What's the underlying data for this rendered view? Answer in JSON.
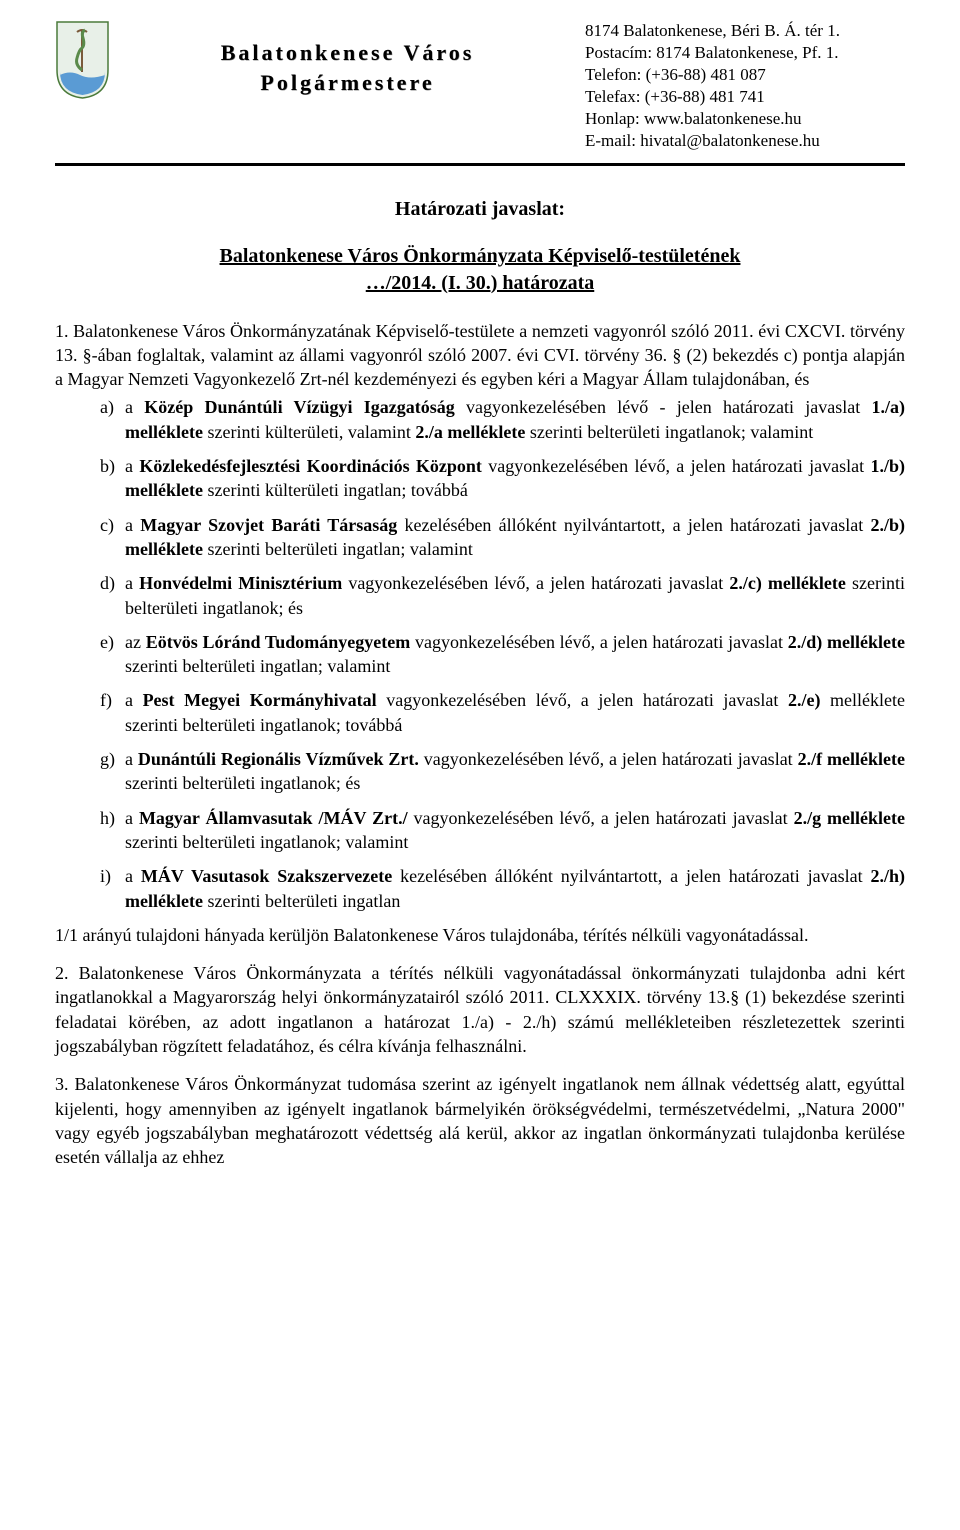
{
  "header": {
    "org_line1": "Balatonkenese Város",
    "org_line2": "Polgármestere",
    "contact": {
      "address": "8174 Balatonkenese, Béri B. Á. tér 1.",
      "postal": "Postacím: 8174 Balatonkenese, Pf. 1.",
      "phone": "Telefon: (+36-88) 481 087",
      "fax": "Telefax: (+36-88) 481 741",
      "web": "Honlap: www.balatonkenese.hu",
      "email": "E-mail: hivatal@balatonkenese.hu"
    }
  },
  "crest": {
    "shield_fill": "#c6e8d8",
    "shield_stroke": "#4a7a3a",
    "snake_color": "#5a8a4a",
    "wave_color": "#5a9bd4"
  },
  "doc": {
    "heading": "Határozati javaslat:",
    "subtitle1": "Balatonkenese Város Önkormányzata Képviselő-testületének",
    "subtitle2": "…/2014. (I. 30.) határozata",
    "intro": "1. Balatonkenese Város Önkormányzatának Képviselő-testülete a nemzeti vagyonról szóló 2011. évi CXCVI. törvény 13. §-ában foglaltak, valamint az állami vagyonról szóló 2007. évi CVI. törvény 36. § (2) bekezdés c) pontja alapján a Magyar Nemzeti Vagyonkezelő Zrt-nél kezdeményezi és egyben kéri a Magyar Állam tulajdonában, és",
    "items": [
      {
        "m": "a)",
        "html": "a <b>Közép Dunántúli Vízügyi Igazgatóság</b> vagyonkezelésében lévő - jelen határozati javaslat <b>1./a) melléklete</b> szerinti külterületi, valamint <b>2./a melléklete</b> szerinti belterületi ingatlanok; valamint"
      },
      {
        "m": "b)",
        "html": "a <b>Közlekedésfejlesztési Koordinációs Központ</b> vagyonkezelésében lévő, a jelen határozati javaslat <b>1./b) melléklete</b> szerinti külterületi ingatlan; továbbá"
      },
      {
        "m": "c)",
        "html": "a <b>Magyar Szovjet Baráti Társaság</b> kezelésében állóként nyilvántartott, a jelen határozati javaslat <b>2./b) melléklete</b> szerinti belterületi ingatlan; valamint"
      },
      {
        "m": "d)",
        "html": "a <b>Honvédelmi Minisztérium</b> vagyonkezelésében lévő, a jelen határozati javaslat <b>2./c) melléklete</b> szerinti belterületi ingatlanok; és"
      },
      {
        "m": "e)",
        "html": "az <b>Eötvös Lóránd Tudományegyetem</b> vagyonkezelésében lévő, a jelen határozati javaslat <b>2./d) melléklete</b> szerinti belterületi ingatlan; valamint"
      },
      {
        "m": "f)",
        "html": "a <b>Pest Megyei Kormányhivatal</b> vagyonkezelésében lévő, a jelen határozati javaslat <b>2./e)</b> melléklete szerinti belterületi ingatlanok; továbbá"
      },
      {
        "m": "g)",
        "html": "a <b>Dunántúli Regionális Vízművek Zrt.</b> vagyonkezelésében lévő, a jelen határozati javaslat <b>2./f melléklete</b> szerinti belterületi ingatlanok; és"
      },
      {
        "m": "h)",
        "html": "a <b>Magyar Államvasutak /MÁV Zrt./</b> vagyonkezelésében lévő, a jelen határozati javaslat <b>2./g melléklete</b> szerinti belterületi ingatlanok; valamint"
      },
      {
        "m": "i)",
        "html": "a <b>MÁV Vasutasok Szakszervezete</b> kezelésében állóként nyilvántartott, a jelen határozati javaslat <b>2./h) melléklete</b> szerinti belterületi ingatlan"
      }
    ],
    "closing1": "1/1 arányú tulajdoni hányada kerüljön Balatonkenese Város tulajdonába, térítés nélküli vagyonátadással.",
    "para2": "2. Balatonkenese Város Önkormányzata a térítés nélküli vagyonátadással önkormányzati tulajdonba adni kért ingatlanokkal a Magyarország helyi önkormányzatairól szóló 2011. CLXXXIX. törvény 13.§ (1) bekezdése szerinti feladatai körében, az adott ingatlanon a határozat 1./a) - 2./h) számú mellékleteiben részletezettek szerinti jogszabályban rögzített feladatához, és célra kívánja felhasználni.",
    "para3": "3. Balatonkenese Város Önkormányzat tudomása szerint az igényelt ingatlanok nem állnak védettség alatt, egyúttal kijelenti, hogy amennyiben az igényelt ingatlanok bármelyikén örökségvédelmi, természetvédelmi, „Natura 2000\" vagy egyéb jogszabályban meghatározott védettség alá kerül, akkor az ingatlan önkormányzati tulajdonba kerülése esetén vállalja az ehhez"
  },
  "colors": {
    "text": "#000000",
    "bg": "#ffffff"
  },
  "typography": {
    "body_fontsize": 18,
    "heading_fontsize": 20,
    "org_fontsize": 22
  }
}
